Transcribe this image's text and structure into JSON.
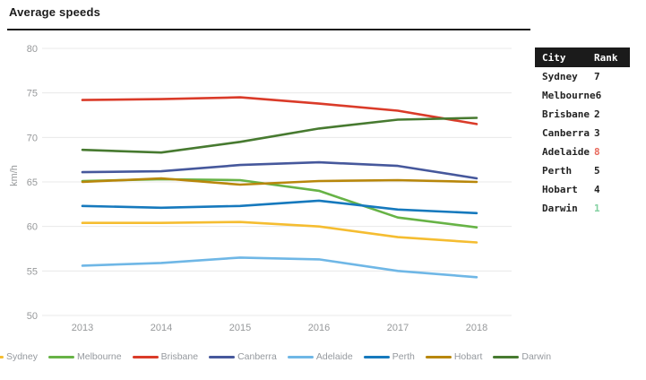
{
  "page": {
    "title": "Average speeds"
  },
  "chart_data": {
    "type": "line",
    "x": [
      2013,
      2014,
      2015,
      2016,
      2017,
      2018
    ],
    "xlabel": "",
    "ylabel": "km/h",
    "ylim": [
      50,
      80
    ],
    "ytick_step": 5,
    "grid": "horizontal",
    "legend_position": "bottom",
    "series": [
      {
        "name": "Sydney",
        "color": "#f5bd31",
        "values": [
          60.4,
          60.4,
          60.5,
          60.0,
          58.8,
          58.2
        ]
      },
      {
        "name": "Melbourne",
        "color": "#67b346",
        "values": [
          65.1,
          65.3,
          65.2,
          64.0,
          61.0,
          59.9
        ]
      },
      {
        "name": "Brisbane",
        "color": "#da3b29",
        "values": [
          74.2,
          74.3,
          74.5,
          73.8,
          73.0,
          71.5
        ]
      },
      {
        "name": "Canberra",
        "color": "#46589c",
        "values": [
          66.1,
          66.2,
          66.9,
          67.2,
          66.8,
          65.4
        ]
      },
      {
        "name": "Adelaide",
        "color": "#6fb7e6",
        "values": [
          55.6,
          55.9,
          56.5,
          56.3,
          55.0,
          54.3
        ]
      },
      {
        "name": "Perth",
        "color": "#1679bd",
        "values": [
          62.3,
          62.1,
          62.3,
          62.9,
          61.9,
          61.5
        ]
      },
      {
        "name": "Hobart",
        "color": "#b8870b",
        "values": [
          65.0,
          65.4,
          64.7,
          65.1,
          65.2,
          65.0
        ]
      },
      {
        "name": "Darwin",
        "color": "#477a30",
        "values": [
          68.6,
          68.3,
          69.5,
          71.0,
          72.0,
          72.2
        ]
      }
    ]
  },
  "table": {
    "headers": [
      "City",
      "Rank"
    ],
    "rows": [
      {
        "city": "Sydney",
        "rank": "7",
        "rank_color": "#232323"
      },
      {
        "city": "Melbourne",
        "rank": "6",
        "rank_color": "#232323"
      },
      {
        "city": "Brisbane",
        "rank": "2",
        "rank_color": "#232323"
      },
      {
        "city": "Canberra",
        "rank": "3",
        "rank_color": "#232323"
      },
      {
        "city": "Adelaide",
        "rank": "8",
        "rank_color": "#e8695c"
      },
      {
        "city": "Perth",
        "rank": "5",
        "rank_color": "#232323"
      },
      {
        "city": "Hobart",
        "rank": "4",
        "rank_color": "#232323"
      },
      {
        "city": "Darwin",
        "rank": "1",
        "rank_color": "#82d0a0"
      }
    ]
  },
  "colors": {
    "title": "#1b1b1b",
    "axis_text": "#97999b",
    "gridline": "#e8e8e8",
    "table_header_bg": "#1b1b1b",
    "table_header_text": "#ffffff",
    "rank_highlight_bad": "#e8695c",
    "rank_highlight_good": "#82d0a0"
  }
}
